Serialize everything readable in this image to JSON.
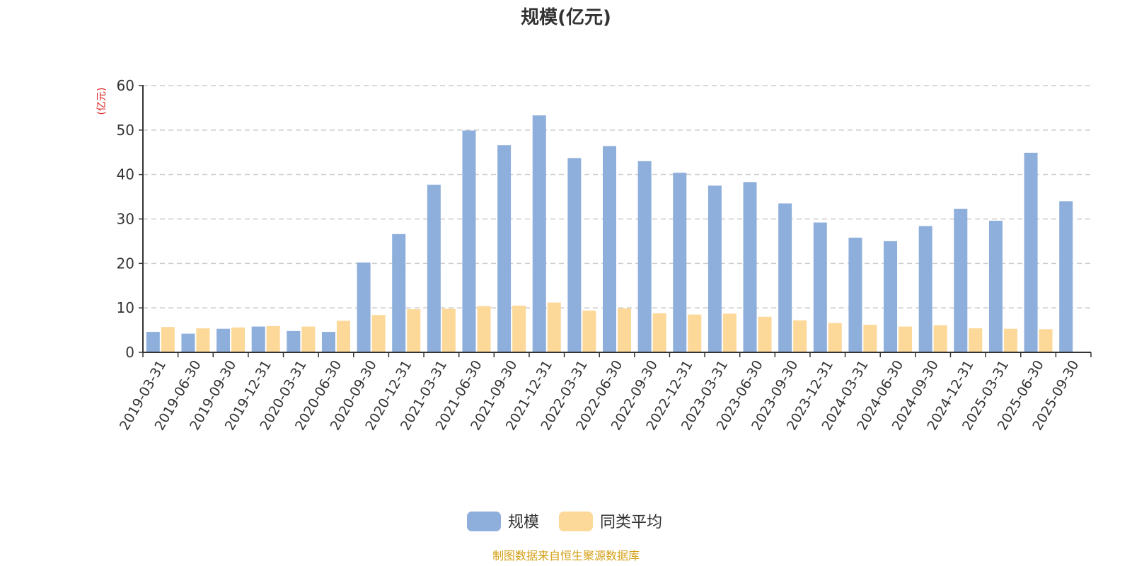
{
  "chart_data": {
    "type": "bar",
    "title": "规模(亿元)",
    "ylabel": "(亿元)",
    "ylim": [
      0,
      60
    ],
    "yticks": [
      "0",
      "10",
      "20",
      "30",
      "40",
      "50",
      "60"
    ],
    "grid": true,
    "legend_position": "bottom-center",
    "categories": [
      "2019-03-31",
      "2019-06-30",
      "2019-09-30",
      "2019-12-31",
      "2020-03-31",
      "2020-06-30",
      "2020-09-30",
      "2020-12-31",
      "2021-03-31",
      "2021-06-30",
      "2021-09-30",
      "2021-12-31",
      "2022-03-31",
      "2022-06-30",
      "2022-09-30",
      "2022-12-31",
      "2023-03-31",
      "2023-06-30",
      "2023-09-30",
      "2023-12-31",
      "2024-03-31",
      "2024-06-30",
      "2024-09-30",
      "2024-12-31",
      "2025-03-31",
      "2025-06-30",
      "2025-09-30"
    ],
    "series": [
      {
        "name": "规模",
        "color": "#8eaedb",
        "values": [
          4.6,
          4.2,
          5.3,
          5.8,
          4.8,
          4.6,
          20.2,
          26.6,
          37.7,
          49.9,
          46.6,
          53.3,
          43.7,
          46.4,
          43.0,
          40.4,
          37.5,
          38.3,
          33.5,
          29.2,
          25.8,
          25.0,
          28.4,
          32.3,
          29.6,
          44.9,
          34.0
        ]
      },
      {
        "name": "同类平均",
        "color": "#fcd899",
        "values": [
          5.7,
          5.4,
          5.6,
          5.9,
          5.8,
          7.1,
          8.4,
          9.7,
          9.8,
          10.4,
          10.5,
          11.2,
          9.4,
          9.9,
          8.8,
          8.5,
          8.7,
          8.0,
          7.2,
          6.6,
          6.2,
          5.8,
          6.1,
          5.4,
          5.3,
          5.2,
          null
        ]
      }
    ]
  },
  "footer": {
    "source_text": "制图数据来自恒生聚源数据库",
    "source_color": "#d4a017"
  },
  "colors": {
    "axis": "#333333",
    "grid": "#cccccc",
    "unit_label": "#e02020"
  }
}
